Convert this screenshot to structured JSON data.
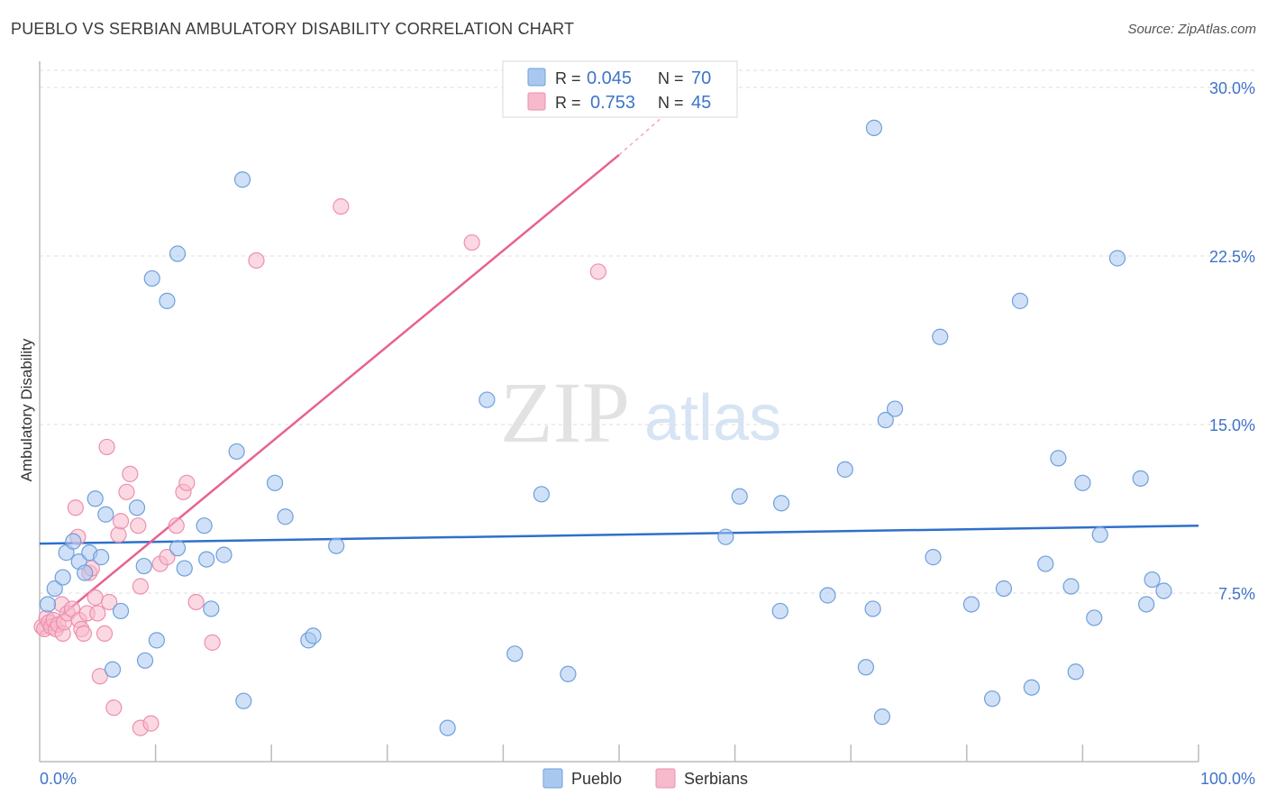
{
  "title": "PUEBLO VS SERBIAN AMBULATORY DISABILITY CORRELATION CHART",
  "source": "Source: ZipAtlas.com",
  "watermark": {
    "zip": "ZIP",
    "atlas": "atlas"
  },
  "colors": {
    "pueblo_fill": "#a9c8f0",
    "pueblo_stroke": "#6f9fdc",
    "pueblo_line": "#2f6fcc",
    "serbians_fill": "#f7b9cc",
    "serbians_stroke": "#ee8fae",
    "serbians_line": "#e8628f",
    "tick_text": "#3f74c8",
    "grid": "#dcdcdc"
  },
  "legend": {
    "rows": [
      {
        "r_label": "R =",
        "r_value": "0.045",
        "n_label": "N =",
        "n_value": "70"
      },
      {
        "r_label": "R =",
        "r_value": "0.753",
        "n_label": "N =",
        "n_value": "45"
      }
    ]
  },
  "bottom_legend": {
    "pueblo": "Pueblo",
    "serbians": "Serbians"
  },
  "chart_data": {
    "type": "scatter",
    "xlabel": "",
    "ylabel": "Ambulatory Disability",
    "xlim": [
      0,
      100
    ],
    "ylim": [
      0,
      30
    ],
    "x_tick_labels": [
      "0.0%",
      "100.0%"
    ],
    "y_ticks": [
      7.5,
      15.0,
      22.5,
      30.0
    ],
    "y_tick_labels": [
      "7.5%",
      "15.0%",
      "22.5%",
      "30.0%"
    ],
    "series": [
      {
        "name": "Pueblo",
        "R": 0.045,
        "N": 70,
        "trend": {
          "x": [
            0,
            100
          ],
          "y": [
            9.7,
            10.5
          ]
        },
        "points": [
          [
            0.7,
            7.0
          ],
          [
            1.3,
            7.7
          ],
          [
            2.0,
            8.2
          ],
          [
            2.3,
            9.3
          ],
          [
            2.9,
            9.8
          ],
          [
            3.4,
            8.9
          ],
          [
            3.9,
            8.4
          ],
          [
            4.3,
            9.3
          ],
          [
            4.8,
            11.7
          ],
          [
            5.3,
            9.1
          ],
          [
            5.7,
            11.0
          ],
          [
            6.3,
            4.1
          ],
          [
            7.0,
            6.7
          ],
          [
            8.4,
            11.3
          ],
          [
            9.0,
            8.7
          ],
          [
            9.1,
            4.5
          ],
          [
            10.1,
            5.4
          ],
          [
            11.0,
            20.5
          ],
          [
            9.7,
            21.5
          ],
          [
            11.9,
            9.5
          ],
          [
            11.9,
            22.6
          ],
          [
            12.5,
            8.6
          ],
          [
            14.2,
            10.5
          ],
          [
            14.4,
            9.0
          ],
          [
            14.8,
            6.8
          ],
          [
            15.9,
            9.2
          ],
          [
            17.0,
            13.8
          ],
          [
            17.5,
            25.9
          ],
          [
            17.6,
            2.7
          ],
          [
            20.3,
            12.4
          ],
          [
            21.2,
            10.9
          ],
          [
            23.2,
            5.4
          ],
          [
            23.6,
            5.6
          ],
          [
            25.6,
            9.6
          ],
          [
            35.2,
            1.5
          ],
          [
            38.6,
            16.1
          ],
          [
            41.0,
            4.8
          ],
          [
            43.3,
            11.9
          ],
          [
            45.6,
            3.9
          ],
          [
            59.2,
            10.0
          ],
          [
            60.4,
            11.8
          ],
          [
            63.9,
            6.7
          ],
          [
            64.0,
            11.5
          ],
          [
            68.0,
            7.4
          ],
          [
            69.5,
            13.0
          ],
          [
            71.3,
            4.2
          ],
          [
            71.9,
            6.8
          ],
          [
            73.0,
            15.2
          ],
          [
            72.0,
            28.2
          ],
          [
            72.7,
            2.0
          ],
          [
            73.8,
            15.7
          ],
          [
            77.1,
            9.1
          ],
          [
            77.7,
            18.9
          ],
          [
            80.4,
            7.0
          ],
          [
            82.2,
            2.8
          ],
          [
            83.2,
            7.7
          ],
          [
            84.6,
            20.5
          ],
          [
            85.6,
            3.3
          ],
          [
            86.8,
            8.8
          ],
          [
            87.9,
            13.5
          ],
          [
            89.0,
            7.8
          ],
          [
            89.4,
            4.0
          ],
          [
            90.0,
            12.4
          ],
          [
            91.0,
            6.4
          ],
          [
            91.5,
            10.1
          ],
          [
            93.0,
            22.4
          ],
          [
            95.0,
            12.6
          ],
          [
            95.5,
            7.0
          ],
          [
            97.0,
            7.6
          ],
          [
            96.0,
            8.1
          ]
        ]
      },
      {
        "name": "Serbians",
        "R": 0.753,
        "N": 45,
        "trend": {
          "x": [
            0,
            50
          ],
          "y": [
            5.7,
            27.0
          ],
          "dash_x": [
            50,
            54
          ],
          "dash_y": [
            27.0,
            28.8
          ]
        },
        "points": [
          [
            0.2,
            6.0
          ],
          [
            0.4,
            5.9
          ],
          [
            0.6,
            6.4
          ],
          [
            0.8,
            6.2
          ],
          [
            1.0,
            6.0
          ],
          [
            1.2,
            6.3
          ],
          [
            1.4,
            5.9
          ],
          [
            1.6,
            6.1
          ],
          [
            1.9,
            7.0
          ],
          [
            2.0,
            5.7
          ],
          [
            2.1,
            6.2
          ],
          [
            2.4,
            6.6
          ],
          [
            2.8,
            6.8
          ],
          [
            3.1,
            11.3
          ],
          [
            3.3,
            10.0
          ],
          [
            3.4,
            6.3
          ],
          [
            3.6,
            5.9
          ],
          [
            3.8,
            5.7
          ],
          [
            4.1,
            6.6
          ],
          [
            4.3,
            8.4
          ],
          [
            4.5,
            8.6
          ],
          [
            4.8,
            7.3
          ],
          [
            5.0,
            6.6
          ],
          [
            5.2,
            3.8
          ],
          [
            5.6,
            5.7
          ],
          [
            5.8,
            14.0
          ],
          [
            6.0,
            7.1
          ],
          [
            6.4,
            2.4
          ],
          [
            6.8,
            10.1
          ],
          [
            7.0,
            10.7
          ],
          [
            7.5,
            12.0
          ],
          [
            7.8,
            12.8
          ],
          [
            8.5,
            10.5
          ],
          [
            8.7,
            7.8
          ],
          [
            8.7,
            1.5
          ],
          [
            9.6,
            1.7
          ],
          [
            10.4,
            8.8
          ],
          [
            11.0,
            9.1
          ],
          [
            11.8,
            10.5
          ],
          [
            12.4,
            12.0
          ],
          [
            12.7,
            12.4
          ],
          [
            13.5,
            7.1
          ],
          [
            14.9,
            5.3
          ],
          [
            18.7,
            22.3
          ],
          [
            26.0,
            24.7
          ]
        ]
      }
    ],
    "extra_serbian_points": [
      [
        37.3,
        23.1
      ],
      [
        48.2,
        21.8
      ]
    ]
  }
}
